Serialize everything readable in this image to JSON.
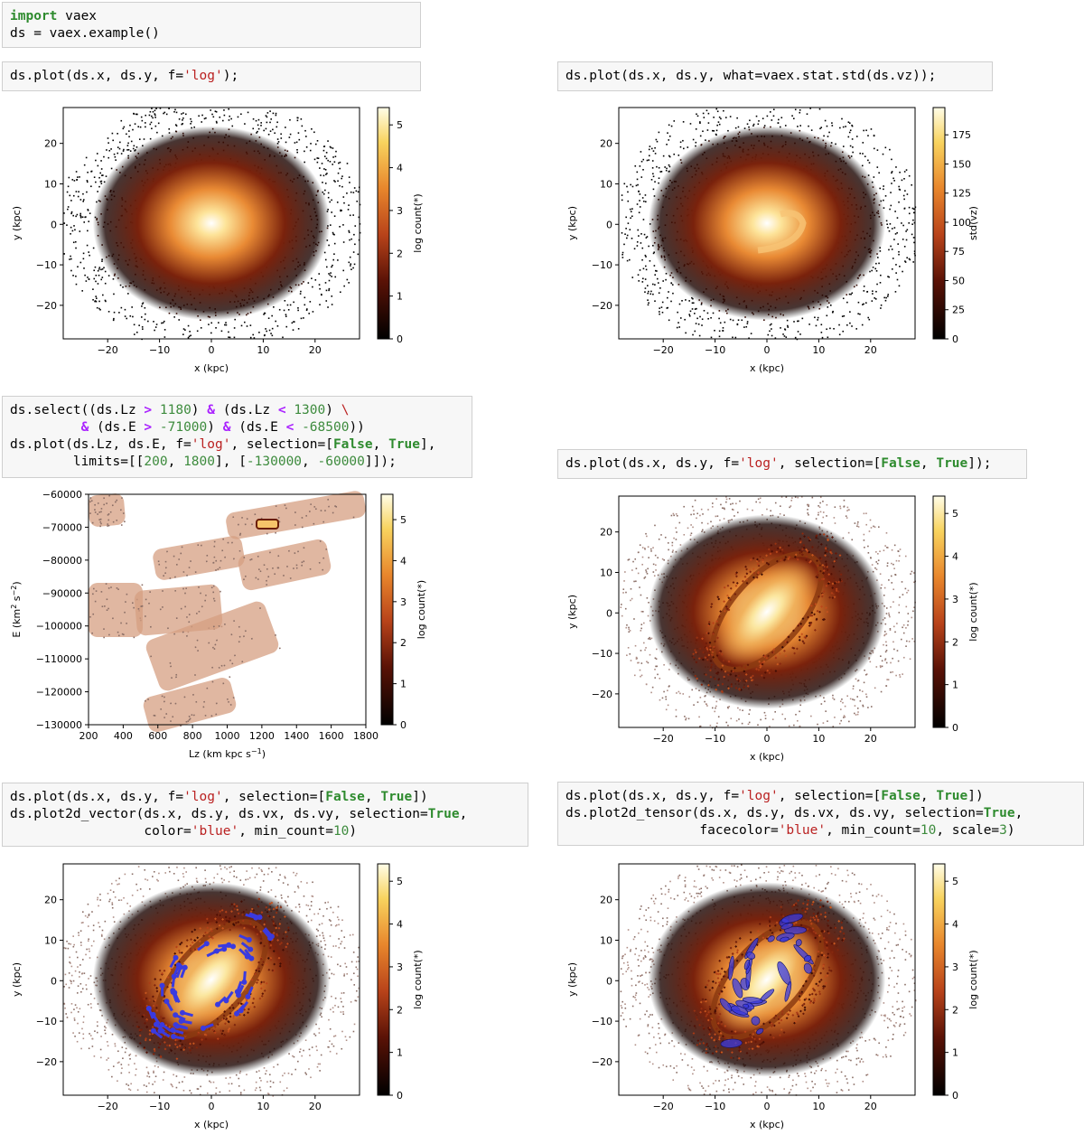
{
  "cells": {
    "c1": {
      "l1": [
        "import",
        " vaex"
      ],
      "l2": "ds = vaex.example()"
    },
    "c2": {
      "pre": "ds.plot(ds.x, ds.y, f=",
      "str": "'log'",
      "post": ");"
    },
    "c3": {
      "text": "ds.plot(ds.x, ds.y, what=vaex.stat.std(ds.vz));"
    },
    "c4": {
      "l1": [
        "ds.select((ds.Lz ",
        ">",
        " ",
        "1180",
        ") ",
        "&",
        " (ds.Lz ",
        "<",
        " ",
        "1300",
        ") ",
        "\\"
      ],
      "l2": [
        "         ",
        "&",
        " (ds.E ",
        ">",
        " ",
        "-71000",
        ") ",
        "&",
        " (ds.E ",
        "<",
        " ",
        "-68500",
        "))"
      ],
      "l3": [
        "ds.plot(ds.Lz, ds.E, f=",
        "'log'",
        ", selection=[",
        "False",
        ", ",
        "True",
        "],"
      ],
      "l4": [
        "        limits=[[",
        "200",
        ", ",
        "1800",
        "], [",
        "-130000",
        ", ",
        "-60000",
        "]]);"
      ]
    },
    "c5": {
      "parts": [
        "ds.plot(ds.x, ds.y, f=",
        "'log'",
        ", selection=[",
        "False",
        ", ",
        "True",
        "]);"
      ]
    },
    "c6": {
      "l1": [
        "ds.plot(ds.x, ds.y, f=",
        "'log'",
        ", selection=[",
        "False",
        ", ",
        "True",
        "])"
      ],
      "l2": [
        "ds.plot2d_vector(ds.x, ds.y, ds.vx, ds.vy, selection=",
        "True",
        ","
      ],
      "l3": [
        "                 color=",
        "'blue'",
        ", min_count=",
        "10",
        ")"
      ]
    },
    "c7": {
      "l1": [
        "ds.plot(ds.x, ds.y, f=",
        "'log'",
        ", selection=[",
        "False",
        ", ",
        "True",
        "])"
      ],
      "l2": [
        "ds.plot2d_tensor(ds.x, ds.y, ds.vx, ds.vy, selection=",
        "True",
        ","
      ],
      "l3": [
        "                 facecolor=",
        "'blue'",
        ", min_count=",
        "10",
        ", scale=",
        "3",
        ")"
      ]
    }
  },
  "plots": {
    "p1": {
      "xlabel": "x (kpc)",
      "ylabel": "y (kpc)",
      "cblabel": "log count(*)",
      "xticks": [
        "−20",
        "−10",
        "0",
        "10",
        "20"
      ],
      "yticks": [
        "20",
        "10",
        "0",
        "−10",
        "−20"
      ],
      "cbticks": [
        "5",
        "4",
        "3",
        "2",
        "1",
        "0"
      ]
    },
    "p2": {
      "xlabel": "x (kpc)",
      "ylabel": "y (kpc)",
      "cblabel": "std(vz)",
      "xticks": [
        "−20",
        "−10",
        "0",
        "10",
        "20"
      ],
      "yticks": [
        "20",
        "10",
        "0",
        "−10",
        "−20"
      ],
      "cbticks": [
        "175",
        "150",
        "125",
        "100",
        "75",
        "50",
        "25",
        "0"
      ]
    },
    "p3": {
      "xlabel": "Lz (km kpc s",
      "xlabel_sup": "−1",
      "ylabel": "E (km",
      "cblabel": "log count(*)",
      "xticks": [
        "200",
        "400",
        "600",
        "800",
        "1000",
        "1200",
        "1400",
        "1600",
        "1800"
      ],
      "yticks": [
        "−60000",
        "−70000",
        "−80000",
        "−90000",
        "−100000",
        "−110000",
        "−120000",
        "−130000"
      ],
      "cbticks": [
        "5",
        "4",
        "3",
        "2",
        "1",
        "0"
      ]
    },
    "p4": {
      "xlabel": "x (kpc)",
      "ylabel": "y (kpc)",
      "cblabel": "log count(*)",
      "xticks": [
        "−20",
        "−10",
        "0",
        "10",
        "20"
      ],
      "yticks": [
        "20",
        "10",
        "0",
        "−10",
        "−20"
      ],
      "cbticks": [
        "5",
        "4",
        "3",
        "2",
        "1",
        "0"
      ]
    },
    "p5": {
      "xlabel": "x (kpc)",
      "ylabel": "y (kpc)",
      "cblabel": "log count(*)",
      "xticks": [
        "−20",
        "−10",
        "0",
        "10",
        "20"
      ],
      "yticks": [
        "20",
        "10",
        "0",
        "−10",
        "−20"
      ],
      "cbticks": [
        "5",
        "4",
        "3",
        "2",
        "1",
        "0"
      ]
    },
    "p6": {
      "xlabel": "x (kpc)",
      "ylabel": "y (kpc)",
      "cblabel": "log count(*)",
      "xticks": [
        "−20",
        "−10",
        "0",
        "10",
        "20"
      ],
      "yticks": [
        "20",
        "10",
        "0",
        "−10",
        "−20"
      ],
      "cbticks": [
        "5",
        "4",
        "3",
        "2",
        "1",
        "0"
      ]
    }
  },
  "colors": {
    "vector": "#3a3adf",
    "keyword": "#2e8b2e",
    "string": "#ba2121",
    "operator": "#aa22ff"
  }
}
